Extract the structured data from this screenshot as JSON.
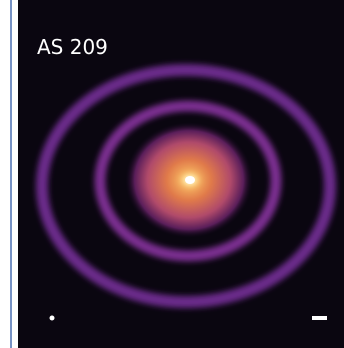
{
  "image": {
    "label": "AS 209"
  }
}
